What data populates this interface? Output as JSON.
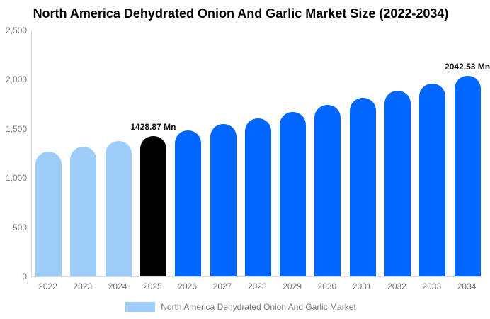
{
  "title": "North America Dehydrated Onion And Garlic Market Size (2022-2034)",
  "colors": {
    "historical_bar": "#9FCDFA",
    "base_year_bar": "#000000",
    "forecast_bar": "#0066FE",
    "axis_line": "#D9D9D9",
    "axis_text": "#757575",
    "value_label_text": "#111111",
    "title_text": "#000000",
    "background": "#FFFFFF"
  },
  "chart_data": {
    "type": "bar",
    "title": "North America Dehydrated Onion And Garlic Market Size (2022-2034)",
    "unit": "Mn",
    "ylim": [
      0,
      2500
    ],
    "y_ticks": [
      "2,500",
      "2,000",
      "1,500",
      "1,000",
      "500",
      "0"
    ],
    "grid": false,
    "legend_position": "bottom",
    "legend_label": "North America Dehydrated Onion And Garlic Market",
    "categories": [
      "2022",
      "2023",
      "2024",
      "2025",
      "2026",
      "2027",
      "2028",
      "2029",
      "2030",
      "2031",
      "2032",
      "2033",
      "2034"
    ],
    "bars": [
      {
        "year": "2022",
        "value": 1268,
        "segment": "historical",
        "label": ""
      },
      {
        "year": "2023",
        "value": 1320,
        "segment": "historical",
        "label": ""
      },
      {
        "year": "2024",
        "value": 1373,
        "segment": "historical",
        "label": ""
      },
      {
        "year": "2025",
        "value": 1428.87,
        "segment": "base_year",
        "label": "1428.87 Mn"
      },
      {
        "year": "2026",
        "value": 1487,
        "segment": "forecast",
        "label": ""
      },
      {
        "year": "2027",
        "value": 1547,
        "segment": "forecast",
        "label": ""
      },
      {
        "year": "2028",
        "value": 1610,
        "segment": "forecast",
        "label": ""
      },
      {
        "year": "2029",
        "value": 1675,
        "segment": "forecast",
        "label": ""
      },
      {
        "year": "2030",
        "value": 1743,
        "segment": "forecast",
        "label": ""
      },
      {
        "year": "2031",
        "value": 1813,
        "segment": "forecast",
        "label": ""
      },
      {
        "year": "2032",
        "value": 1887,
        "segment": "forecast",
        "label": ""
      },
      {
        "year": "2033",
        "value": 1963,
        "segment": "forecast",
        "label": ""
      },
      {
        "year": "2034",
        "value": 2042.53,
        "segment": "forecast",
        "label": "2042.53 Mn"
      }
    ]
  }
}
